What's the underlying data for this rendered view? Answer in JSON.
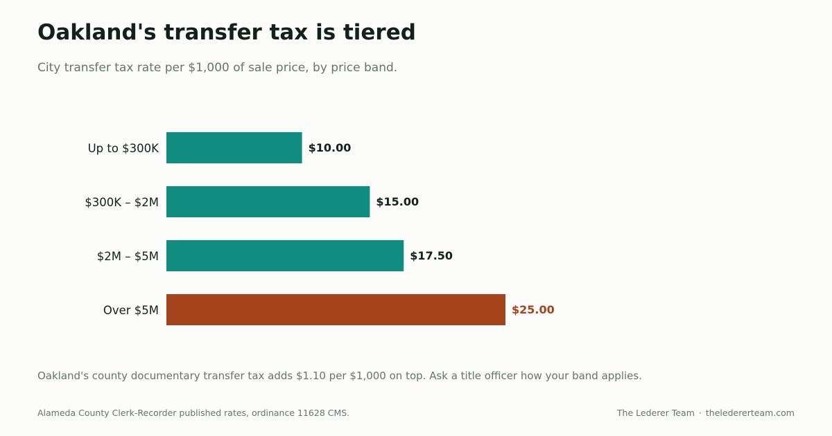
{
  "header": {
    "title": "Oakland's transfer tax is tiered",
    "subtitle": "City transfer tax rate per $1,000 of sale price, by price band."
  },
  "chart_data": {
    "type": "bar",
    "orientation": "horizontal",
    "categories": [
      "Up to $300K",
      "$300K – $2M",
      "$2M – $5M",
      "Over $5M"
    ],
    "values": [
      10.0,
      15.0,
      17.5,
      25.0
    ],
    "value_labels": [
      "$10.00",
      "$15.00",
      "$17.50",
      "$25.00"
    ],
    "title": "Oakland's transfer tax is tiered",
    "subtitle": "City transfer tax rate per $1,000 of sale price, by price band.",
    "xlabel": "",
    "ylabel": "",
    "xlim": [
      0,
      25
    ],
    "grid": false,
    "legend": "none",
    "highlight_index": 3,
    "colors": {
      "default": "#108c80",
      "highlight": "#a5441c",
      "label_default": "#13201c"
    }
  },
  "footer": {
    "note": "Oakland's county documentary transfer tax adds $1.10 per $1,000 on top. Ask a title officer how your band applies.",
    "source": "Alameda County Clerk-Recorder published rates, ordinance 11628 CMS.",
    "credit_name": "The Lederer Team",
    "credit_separator": "·",
    "credit_site": "theledererteam.com"
  }
}
